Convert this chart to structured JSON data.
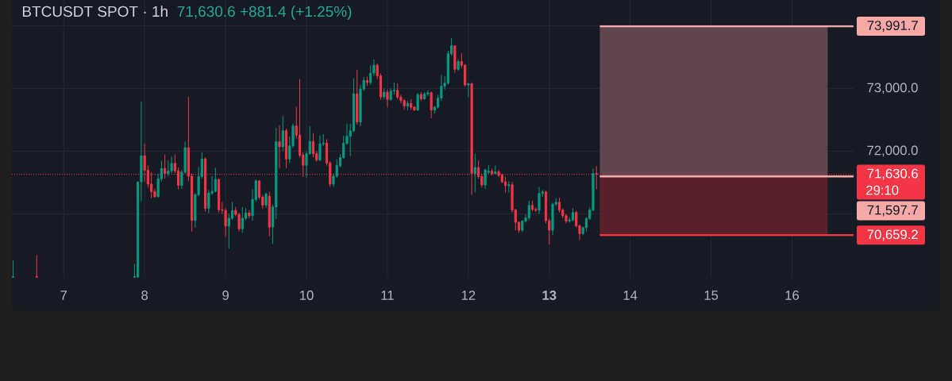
{
  "chart_data": {
    "type": "candlestick",
    "title": "BTCUSDT SPOT · 1h",
    "subtitle": "71,630.6 +881.4 (+1.25%)",
    "annotations": [
      "29:10"
    ],
    "x": [
      6.375,
      6.6667,
      7.875,
      7.9167,
      7.9583,
      8,
      8.0417,
      8.0833,
      8.125,
      8.1667,
      8.2083,
      8.25,
      8.2917,
      8.3333,
      8.375,
      8.4167,
      8.4583,
      8.5,
      8.5417,
      8.5833,
      8.625,
      8.6667,
      8.7083,
      8.75,
      8.7917,
      8.8333,
      8.875,
      8.9167,
      8.9583,
      9,
      9.0417,
      9.0833,
      9.125,
      9.1667,
      9.2083,
      9.25,
      9.2917,
      9.3333,
      9.375,
      9.4167,
      9.4583,
      9.5,
      9.5417,
      9.5833,
      9.625,
      9.6667,
      9.7083,
      9.75,
      9.7917,
      9.8333,
      9.875,
      9.9167,
      9.9583,
      10,
      10.0417,
      10.0833,
      10.125,
      10.1667,
      10.2083,
      10.25,
      10.2917,
      10.3333,
      10.375,
      10.4167,
      10.4583,
      10.5,
      10.5417,
      10.5833,
      10.625,
      10.6667,
      10.7083,
      10.75,
      10.7917,
      10.8333,
      10.875,
      10.9167,
      10.9583,
      11,
      11.0417,
      11.0833,
      11.125,
      11.1667,
      11.2083,
      11.25,
      11.2917,
      11.3333,
      11.375,
      11.4167,
      11.4583,
      11.5,
      11.5417,
      11.5833,
      11.625,
      11.6667,
      11.7083,
      11.75,
      11.7917,
      11.8333,
      11.875,
      11.9167,
      11.9583,
      12,
      12.0417,
      12.0833,
      12.125,
      12.1667,
      12.2083,
      12.25,
      12.2917,
      12.3333,
      12.375,
      12.4167,
      12.4583,
      12.5,
      12.5417,
      12.5833,
      12.625,
      12.6667,
      12.7083,
      12.75,
      12.7917,
      12.8333,
      12.875,
      12.9167,
      12.9583,
      13,
      13.0417,
      13.0833,
      13.125,
      13.1667,
      13.2083,
      13.25,
      13.2917,
      13.3333,
      13.375,
      13.4167,
      13.4583,
      13.5,
      13.5417,
      13.5833
    ],
    "ohlc": [
      [
        69990,
        70260,
        69990,
        70000
      ],
      [
        70000,
        70340,
        69990,
        69990
      ],
      [
        69990,
        70200,
        69990,
        70000
      ],
      [
        69990,
        71510,
        69990,
        71510
      ],
      [
        71510,
        72785,
        71200,
        71925
      ],
      [
        71925,
        72120,
        71515,
        71695
      ],
      [
        71695,
        71770,
        71420,
        71475
      ],
      [
        71475,
        71665,
        71245,
        71355
      ],
      [
        71355,
        71400,
        71255,
        71275
      ],
      [
        71275,
        71640,
        71260,
        71560
      ],
      [
        71560,
        71845,
        71520,
        71725
      ],
      [
        71725,
        71945,
        71560,
        71645
      ],
      [
        71645,
        71850,
        71600,
        71685
      ],
      [
        71685,
        71915,
        71650,
        71805
      ],
      [
        71805,
        71945,
        71650,
        71685
      ],
      [
        71685,
        71740,
        71390,
        71455
      ],
      [
        71455,
        71700,
        71400,
        71665
      ],
      [
        71665,
        72155,
        71640,
        72055
      ],
      [
        72055,
        72870,
        71520,
        71600
      ],
      [
        71600,
        71640,
        70720,
        70895
      ],
      [
        70895,
        71330,
        70780,
        71305
      ],
      [
        71305,
        71750,
        71280,
        71595
      ],
      [
        71595,
        71980,
        71560,
        71875
      ],
      [
        71875,
        71900,
        71035,
        71090
      ],
      [
        71090,
        71380,
        71010,
        71330
      ],
      [
        71330,
        71600,
        71300,
        71360
      ],
      [
        71360,
        71735,
        71340,
        71550
      ],
      [
        71550,
        71560,
        71020,
        71065
      ],
      [
        71065,
        71190,
        71000,
        71055
      ],
      [
        71055,
        71090,
        70635,
        70805
      ],
      [
        70805,
        71000,
        70445,
        70930
      ],
      [
        70930,
        71190,
        70900,
        71055
      ],
      [
        71055,
        71110,
        70960,
        70990
      ],
      [
        70990,
        71020,
        70720,
        70760
      ],
      [
        70760,
        71110,
        70700,
        70930
      ],
      [
        70930,
        71090,
        70900,
        71015
      ],
      [
        71015,
        71060,
        70930,
        70970
      ],
      [
        70970,
        71390,
        70890,
        71230
      ],
      [
        71230,
        71550,
        71200,
        71525
      ],
      [
        71525,
        71540,
        71230,
        71265
      ],
      [
        71265,
        71300,
        71080,
        71140
      ],
      [
        71140,
        71340,
        71100,
        71315
      ],
      [
        71280,
        71350,
        70640,
        70790
      ],
      [
        70790,
        71150,
        70520,
        71110
      ],
      [
        71110,
        72370,
        70920,
        72150
      ],
      [
        72150,
        72410,
        71725,
        72070
      ],
      [
        72070,
        72560,
        72000,
        72325
      ],
      [
        72325,
        72360,
        71730,
        71875
      ],
      [
        71875,
        72235,
        71810,
        72085
      ],
      [
        72085,
        72440,
        72050,
        72400
      ],
      [
        72400,
        72705,
        72200,
        72255
      ],
      [
        72255,
        73150,
        71900,
        71935
      ],
      [
        71935,
        71980,
        71590,
        71775
      ],
      [
        71775,
        72000,
        71580,
        71960
      ],
      [
        71960,
        72400,
        71940,
        72155
      ],
      [
        72155,
        72290,
        71900,
        71960
      ],
      [
        71960,
        72000,
        71830,
        71860
      ],
      [
        71860,
        72250,
        71840,
        72115
      ],
      [
        72115,
        72270,
        72080,
        72130
      ],
      [
        72130,
        72190,
        71770,
        71810
      ],
      [
        71810,
        71840,
        71430,
        71475
      ],
      [
        71475,
        71640,
        71430,
        71600
      ],
      [
        71600,
        71870,
        71570,
        71770
      ],
      [
        71770,
        71950,
        71740,
        71895
      ],
      [
        71895,
        72245,
        71880,
        72125
      ],
      [
        72125,
        72440,
        72100,
        72240
      ],
      [
        72240,
        72440,
        71920,
        72325
      ],
      [
        72325,
        73160,
        72300,
        72915
      ],
      [
        72915,
        73295,
        72420,
        72465
      ],
      [
        72465,
        73060,
        72400,
        72990
      ],
      [
        72990,
        73180,
        72960,
        73125
      ],
      [
        73125,
        73190,
        73040,
        73095
      ],
      [
        73095,
        73370,
        73060,
        73245
      ],
      [
        73245,
        73460,
        73200,
        73370
      ],
      [
        73370,
        73400,
        73150,
        73200
      ],
      [
        73200,
        73240,
        72820,
        72865
      ],
      [
        72865,
        73000,
        72830,
        72940
      ],
      [
        72940,
        72980,
        72700,
        72825
      ],
      [
        72825,
        73000,
        72800,
        72960
      ],
      [
        72960,
        73095,
        72900,
        72970
      ],
      [
        72970,
        73080,
        72830,
        72860
      ],
      [
        72860,
        72900,
        72760,
        72805
      ],
      [
        72805,
        72830,
        72660,
        72720
      ],
      [
        72720,
        72800,
        72650,
        72760
      ],
      [
        72760,
        72830,
        72660,
        72700
      ],
      [
        72700,
        72720,
        72640,
        72655
      ],
      [
        72655,
        72930,
        72640,
        72900
      ],
      [
        72900,
        72940,
        72800,
        72835
      ],
      [
        72835,
        72940,
        72820,
        72910
      ],
      [
        72910,
        72970,
        72880,
        72930
      ],
      [
        72930,
        72950,
        72525,
        72655
      ],
      [
        72655,
        72720,
        72600,
        72700
      ],
      [
        72700,
        72900,
        72680,
        72845
      ],
      [
        72845,
        73220,
        72800,
        73035
      ],
      [
        73035,
        73200,
        72980,
        73085
      ],
      [
        73085,
        73600,
        73060,
        73555
      ],
      [
        73555,
        73805,
        73520,
        73680
      ],
      [
        73680,
        73690,
        73250,
        73305
      ],
      [
        73305,
        73470,
        73280,
        73430
      ],
      [
        73430,
        73560,
        73330,
        73370
      ],
      [
        73370,
        73390,
        73030,
        73055
      ],
      [
        73055,
        73090,
        72860,
        73075
      ],
      [
        73075,
        73100,
        71300,
        71645
      ],
      [
        71645,
        71960,
        71340,
        71740
      ],
      [
        71740,
        71850,
        71560,
        71595
      ],
      [
        71595,
        71640,
        71420,
        71460
      ],
      [
        71460,
        71720,
        71400,
        71700
      ],
      [
        71660,
        71780,
        71640,
        71680
      ],
      [
        71680,
        71720,
        71610,
        71645
      ],
      [
        71645,
        71770,
        71630,
        71670
      ],
      [
        71670,
        71700,
        71590,
        71615
      ],
      [
        71615,
        71640,
        71490,
        71510
      ],
      [
        71510,
        71590,
        71340,
        71450
      ],
      [
        71450,
        71520,
        71340,
        71465
      ],
      [
        71465,
        71510,
        71020,
        71060
      ],
      [
        71060,
        71080,
        70740,
        70865
      ],
      [
        70865,
        70880,
        70700,
        70740
      ],
      [
        70740,
        70900,
        70710,
        70885
      ],
      [
        70885,
        70990,
        70860,
        70935
      ],
      [
        70935,
        71210,
        70900,
        71135
      ],
      [
        71135,
        71210,
        71040,
        71070
      ],
      [
        71070,
        71100,
        71030,
        71060
      ],
      [
        71060,
        71430,
        71000,
        71325
      ],
      [
        71325,
        71380,
        71270,
        71350
      ],
      [
        71350,
        71370,
        70850,
        70890
      ],
      [
        70890,
        70920,
        70510,
        70740
      ],
      [
        70740,
        71180,
        70660,
        71155
      ],
      [
        71155,
        71250,
        71120,
        71185
      ],
      [
        71185,
        71260,
        71020,
        71060
      ],
      [
        71060,
        71090,
        70930,
        70970
      ],
      [
        70970,
        71000,
        70850,
        70885
      ],
      [
        70885,
        70950,
        70860,
        70905
      ],
      [
        70905,
        71090,
        70880,
        71020
      ],
      [
        71020,
        71050,
        70780,
        70810
      ],
      [
        70810,
        70830,
        70580,
        70685
      ],
      [
        70685,
        70800,
        70660,
        70780
      ],
      [
        70780,
        70950,
        70720,
        70925
      ],
      [
        70925,
        71100,
        70900,
        71060
      ],
      [
        71060,
        71720,
        71040,
        71645
      ],
      [
        71645,
        71760,
        71390,
        71630.6
      ]
    ],
    "colors": [
      "#089981",
      "#f23645",
      "#089981",
      "#089981",
      "#089981",
      "#f23645",
      "#f23645",
      "#f23645",
      "#f23645",
      "#089981",
      "#089981",
      "#f23645",
      "#089981",
      "#089981",
      "#f23645",
      "#f23645",
      "#089981",
      "#089981",
      "#f23645",
      "#f23645",
      "#089981",
      "#089981",
      "#089981",
      "#f23645",
      "#089981",
      "#089981",
      "#089981",
      "#f23645",
      "#f23645",
      "#f23645",
      "#089981",
      "#089981",
      "#f23645",
      "#f23645",
      "#089981",
      "#089981",
      "#f23645",
      "#089981",
      "#089981",
      "#f23645",
      "#f23645",
      "#089981",
      "#f23645",
      "#089981",
      "#089981",
      "#f23645",
      "#089981",
      "#f23645",
      "#089981",
      "#089981",
      "#f23645",
      "#f23645",
      "#f23645",
      "#089981",
      "#089981",
      "#f23645",
      "#f23645",
      "#089981",
      "#089981",
      "#f23645",
      "#f23645",
      "#089981",
      "#089981",
      "#089981",
      "#089981",
      "#089981",
      "#089981",
      "#089981",
      "#f23645",
      "#089981",
      "#089981",
      "#f23645",
      "#089981",
      "#089981",
      "#f23645",
      "#f23645",
      "#089981",
      "#f23645",
      "#089981",
      "#089981",
      "#f23645",
      "#f23645",
      "#f23645",
      "#089981",
      "#f23645",
      "#f23645",
      "#089981",
      "#f23645",
      "#089981",
      "#089981",
      "#f23645",
      "#089981",
      "#089981",
      "#089981",
      "#089981",
      "#089981",
      "#089981",
      "#f23645",
      "#089981",
      "#f23645",
      "#f23645",
      "#089981",
      "#f23645",
      "#089981",
      "#f23645",
      "#f23645",
      "#089981",
      "#089981",
      "#f23645",
      "#089981",
      "#f23645",
      "#f23645",
      "#f23645",
      "#089981",
      "#f23645",
      "#f23645",
      "#f23645",
      "#089981",
      "#089981",
      "#089981",
      "#f23645",
      "#f23645",
      "#089981",
      "#089981",
      "#f23645",
      "#f23645",
      "#089981",
      "#089981",
      "#f23645",
      "#f23645",
      "#f23645",
      "#089981",
      "#089981",
      "#f23645",
      "#f23645",
      "#089981",
      "#089981",
      "#089981",
      "#089981",
      "#f23645"
    ],
    "xlim": [
      6.36,
      16.76
    ],
    "xticks": [
      7,
      8,
      9,
      10,
      11,
      12,
      {
        "value": 13,
        "label": "**13**"
      },
      14,
      15,
      16
    ],
    "ylim": [
      69980,
      74410
    ],
    "yticks": [
      {
        "value": 71000,
        "label": null
      },
      {
        "value": 72000,
        "label": "72,000.0"
      },
      {
        "value": 73000,
        "label": "73,000.0"
      },
      {
        "value": 74000,
        "label": null
      }
    ],
    "grid": true,
    "bands": [
      {
        "axis": "y",
        "from": 71597.7,
        "to": 73991.7,
        "color": "#5f4651"
      },
      {
        "axis": "y",
        "from": 70659.2,
        "to": 71597.7,
        "color": "#5a212c"
      }
    ],
    "ref_lines": [
      {
        "axis": "y",
        "value": 73991.7,
        "label": "73,991.7",
        "color": "#f7a9a8",
        "line_style": "solid"
      },
      {
        "axis": "y",
        "value": 71630.6,
        "label": "71,630.6",
        "color": "#f23645",
        "line_style": "dotted"
      },
      {
        "axis": "y",
        "value": 71597.7,
        "label": "71,597.7",
        "color": "#f7a9a8",
        "line_style": "solid"
      },
      {
        "axis": "y",
        "value": 70659.2,
        "label": "70,659.2",
        "color": "#f23645",
        "line_style": "solid"
      }
    ]
  }
}
